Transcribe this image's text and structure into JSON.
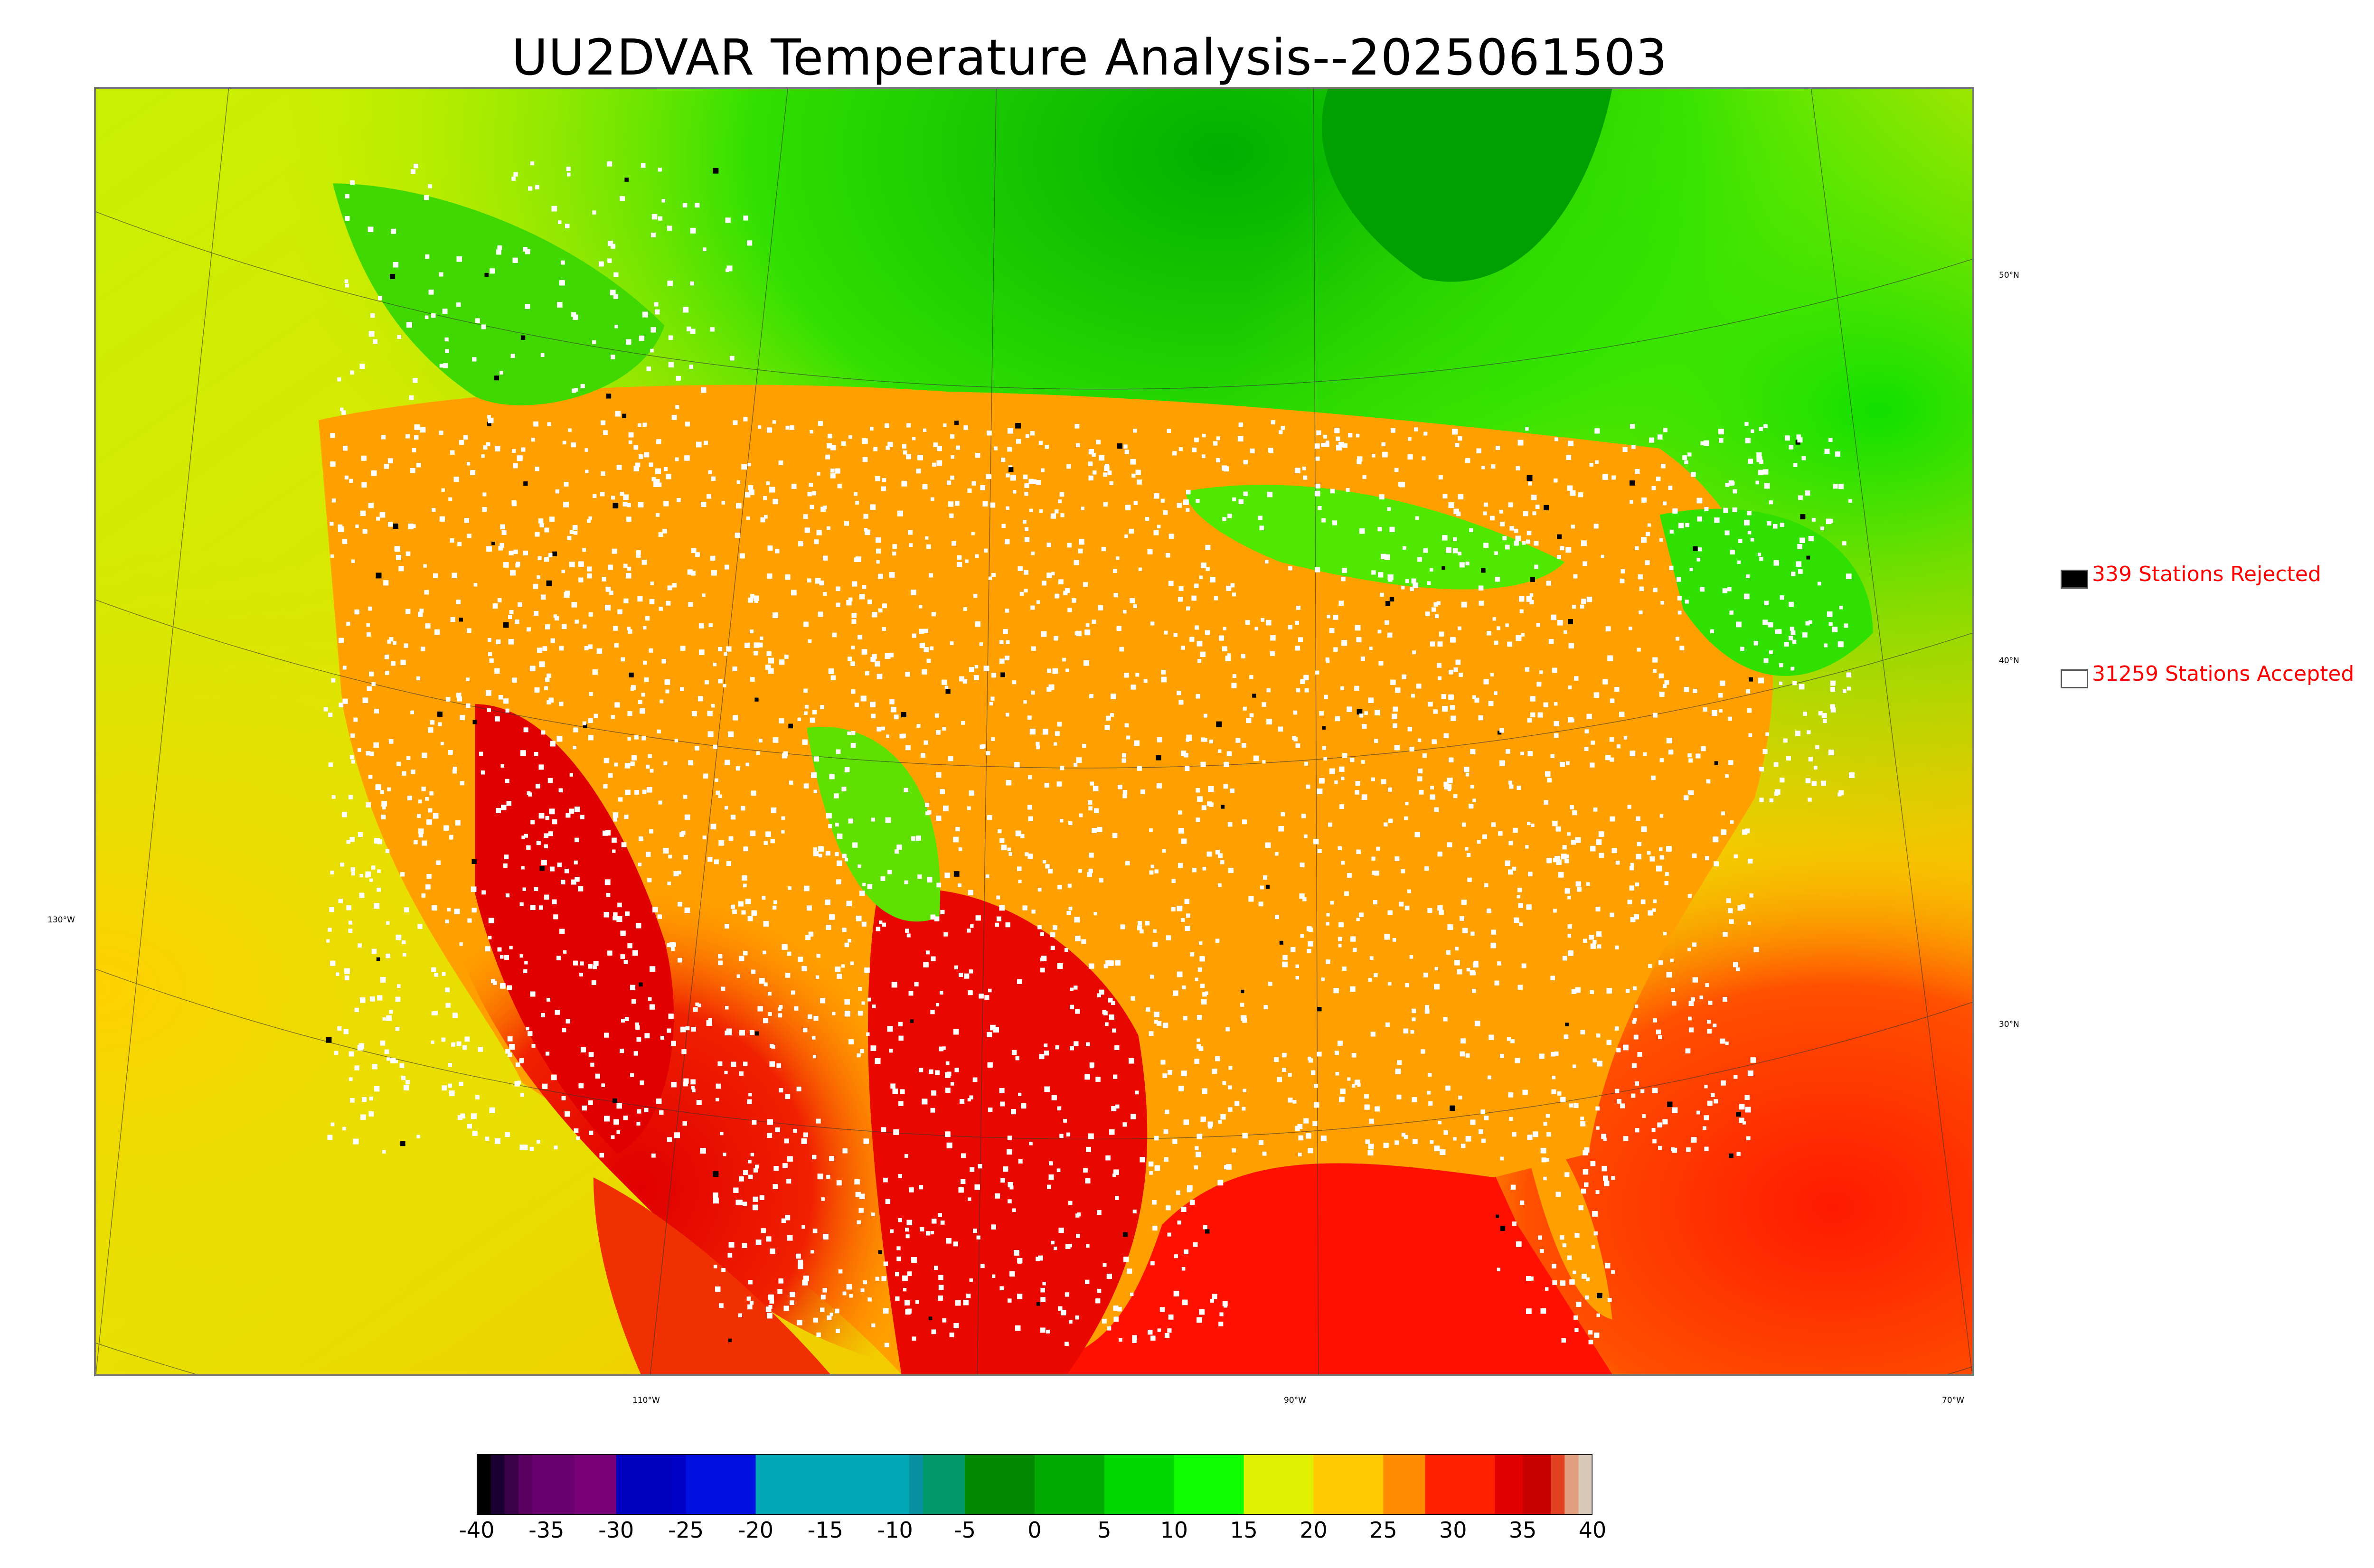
{
  "title": "UU2DVAR Temperature Analysis--2025061503",
  "map": {
    "latitude_labels": [
      "50°N",
      "40°N",
      "30°N"
    ],
    "longitude_labels": [
      "130°W",
      "110°W",
      "90°W",
      "70°W"
    ],
    "colors": {
      "ocean_pacific": "#d8e800",
      "ocean_atlantic": "#ff2a00",
      "canada": "#c8ee00",
      "hot": "#e60000",
      "warm": "#ffa000",
      "cool": "#22e000",
      "station_accepted": "#ffffff",
      "station_rejected": "#000000"
    }
  },
  "legend": {
    "rejected": {
      "label": "339 Stations Rejected",
      "color": "#000000",
      "count": 339
    },
    "accepted": {
      "label": "31259 Stations Accepted",
      "color": "#ffffff",
      "count": 31259
    }
  },
  "colorbar": {
    "min": -40,
    "max": 40,
    "ticks": [
      "-40",
      "-35",
      "-30",
      "-25",
      "-20",
      "-15",
      "-10",
      "-5",
      "0",
      "5",
      "10",
      "15",
      "20",
      "25",
      "30",
      "35",
      "40"
    ],
    "stops": [
      {
        "v": -40,
        "c": "#000000"
      },
      {
        "v": -39,
        "c": "#1a0030"
      },
      {
        "v": -38,
        "c": "#3a0048"
      },
      {
        "v": -37,
        "c": "#5a0060"
      },
      {
        "v": -36,
        "c": "#6a0070"
      },
      {
        "v": -33,
        "c": "#780078"
      },
      {
        "v": -30,
        "c": "#0000c0"
      },
      {
        "v": -26,
        "c": "#0000c8"
      },
      {
        "v": -25,
        "c": "#0010e0"
      },
      {
        "v": -20,
        "c": "#00a8b8"
      },
      {
        "v": -10,
        "c": "#00a8b8"
      },
      {
        "v": -9,
        "c": "#0890a0"
      },
      {
        "v": -8,
        "c": "#009868"
      },
      {
        "v": -5,
        "c": "#008800"
      },
      {
        "v": 0,
        "c": "#00aa00"
      },
      {
        "v": 5,
        "c": "#00d800"
      },
      {
        "v": 10,
        "c": "#10ff00"
      },
      {
        "v": 15,
        "c": "#e0f000"
      },
      {
        "v": 20,
        "c": "#ffc800"
      },
      {
        "v": 25,
        "c": "#ff8c00"
      },
      {
        "v": 28,
        "c": "#ff2000"
      },
      {
        "v": 33,
        "c": "#e00000"
      },
      {
        "v": 35,
        "c": "#c80000"
      },
      {
        "v": 37,
        "c": "#e04020"
      },
      {
        "v": 38,
        "c": "#e0a080"
      },
      {
        "v": 39,
        "c": "#d8c8b8"
      },
      {
        "v": 40,
        "c": "#c8c8c8"
      }
    ]
  }
}
